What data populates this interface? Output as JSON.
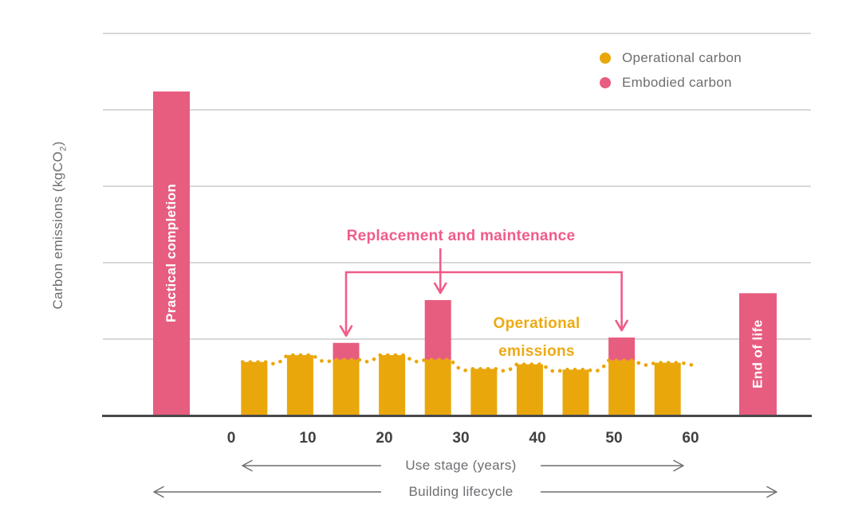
{
  "colors": {
    "operational": "#eaa70b",
    "embodied": "#e75d80",
    "annotation_pink": "#f05c88",
    "annotation_yellow": "#edaa12",
    "grid": "#cbcccd",
    "axis_line": "#48484a",
    "text_gray": "#6d6e71",
    "tick_label": "#414042",
    "bar_label_text": "#ffffff"
  },
  "legend": {
    "items": [
      {
        "label": "Operational carbon",
        "color_key": "operational"
      },
      {
        "label": "Embodied carbon",
        "color_key": "embodied"
      }
    ]
  },
  "y_axis": {
    "label_main": "Carbon emissions (kgCO",
    "label_sub": "2",
    "label_suffix": ")"
  },
  "x_axis": {
    "use_stage_label": "Use stage (years)",
    "lifecycle_label": "Building lifecycle"
  },
  "annotations": {
    "replacement": "Replacement and maintenance",
    "operational_line1": "Operational",
    "operational_line2": "emissions",
    "practical_completion": "Practical completion",
    "end_of_life": "End of life"
  },
  "chart_data": {
    "type": "bar",
    "title": "",
    "ylabel": "Carbon emissions (kgCO2)",
    "xlabel": "Use stage (years)",
    "x_ticks": [
      0,
      10,
      20,
      30,
      40,
      50,
      60
    ],
    "grid": true,
    "legend_position": "top-right",
    "y_unit": "relative units; 1.0 = one gridline interval (y axis is schematic, unlabeled)",
    "series": [
      {
        "name": "Operational carbon",
        "color": "#eaa70b"
      },
      {
        "name": "Embodied carbon",
        "color": "#e75d80"
      }
    ],
    "milestone_bars": [
      {
        "label": "Practical completion",
        "series": "Embodied carbon",
        "position": "before_use_stage",
        "value": 4.23
      },
      {
        "label": "End of life",
        "series": "Embodied carbon",
        "position": "after_use_stage",
        "value": 1.59
      }
    ],
    "use_stage_bars": [
      {
        "year": 3,
        "operational": 0.69,
        "embodied": 0
      },
      {
        "year": 9,
        "operational": 0.78,
        "embodied": 0
      },
      {
        "year": 15,
        "operational": 0.72,
        "embodied": 0.22
      },
      {
        "year": 21,
        "operational": 0.78,
        "embodied": 0
      },
      {
        "year": 27,
        "operational": 0.72,
        "embodied": 0.78
      },
      {
        "year": 33,
        "operational": 0.6,
        "embodied": 0
      },
      {
        "year": 39,
        "operational": 0.66,
        "embodied": 0
      },
      {
        "year": 45,
        "operational": 0.59,
        "embodied": 0
      },
      {
        "year": 51,
        "operational": 0.71,
        "embodied": 0.3
      },
      {
        "year": 57,
        "operational": 0.68,
        "embodied": 0
      }
    ],
    "replacement_arrow_target_years": [
      15,
      27,
      51
    ],
    "annotation_texts": [
      "Replacement and maintenance",
      "Operational emissions"
    ]
  }
}
